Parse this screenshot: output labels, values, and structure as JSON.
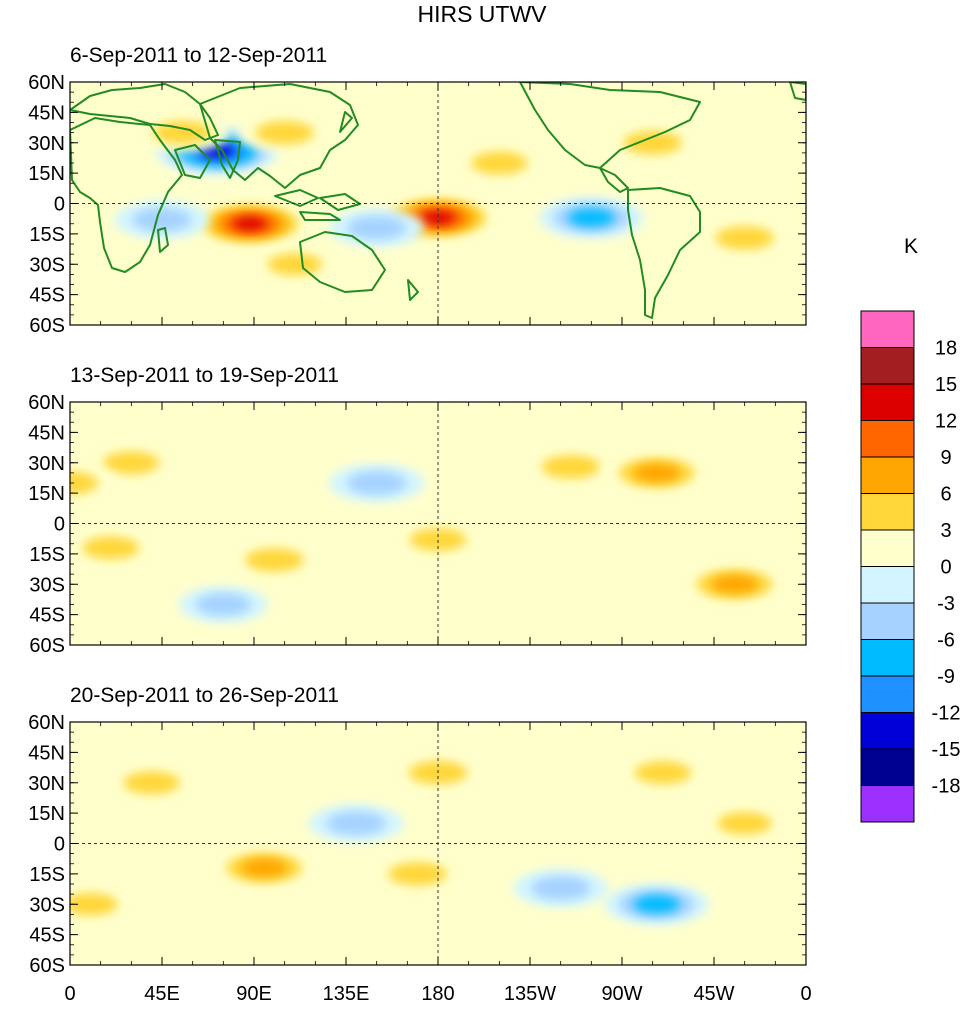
{
  "chart_data": {
    "type": "heatmap",
    "title": "HIRS UTWV",
    "unit_label": "K",
    "colorbar": {
      "levels": [
        "18",
        "15",
        "12",
        "9",
        "6",
        "3",
        "0",
        "-3",
        "-6",
        "-9",
        "-12",
        "-15",
        "-18"
      ],
      "colors": [
        "#ff66c0",
        "#a31e20",
        "#dd0000",
        "#ff6600",
        "#ffa600",
        "#ffd73a",
        "#ffffcc",
        "#d2f5ff",
        "#a6d2ff",
        "#00bbff",
        "#1e90ff",
        "#0000d8",
        "#000090",
        "#9b30ff"
      ]
    },
    "x_ticks": [
      "0",
      "45E",
      "90E",
      "135E",
      "180",
      "135W",
      "90W",
      "45W",
      "0"
    ],
    "y_ticks": [
      "60N",
      "45N",
      "30N",
      "15N",
      "0",
      "15S",
      "30S",
      "45S",
      "60S"
    ],
    "x_range_deg_east": [
      0,
      360
    ],
    "y_range_deg": [
      -60,
      60
    ],
    "reference_lines": {
      "equator_lat": 0,
      "dateline_lon": 180,
      "style": "dashed"
    },
    "coastline_color": "#228b22",
    "panels": [
      {
        "subtitle": "6-Sep-2011 to 12-Sep-2011",
        "features": [
          {
            "lon": 72,
            "lat": 26,
            "value": -15
          },
          {
            "lon": 88,
            "lat": -10,
            "value": 13
          },
          {
            "lon": 180,
            "lat": -7,
            "value": 13
          },
          {
            "lon": 255,
            "lat": -7,
            "value": -9
          },
          {
            "lon": 55,
            "lat": 35,
            "value": 6
          },
          {
            "lon": 105,
            "lat": 35,
            "value": 6
          },
          {
            "lon": 45,
            "lat": -8,
            "value": -6
          },
          {
            "lon": 150,
            "lat": -12,
            "value": -6
          },
          {
            "lon": 210,
            "lat": 20,
            "value": 5
          },
          {
            "lon": 285,
            "lat": 30,
            "value": 6
          },
          {
            "lon": 330,
            "lat": -17,
            "value": 6
          },
          {
            "lon": 110,
            "lat": -30,
            "value": 4
          }
        ]
      },
      {
        "subtitle": "13-Sep-2011 to 19-Sep-2011",
        "features": [
          {
            "lon": 245,
            "lat": 28,
            "value": 6
          },
          {
            "lon": 287,
            "lat": 25,
            "value": 9
          },
          {
            "lon": 325,
            "lat": -30,
            "value": 9
          },
          {
            "lon": 100,
            "lat": -18,
            "value": 6
          },
          {
            "lon": 20,
            "lat": -12,
            "value": 5
          },
          {
            "lon": 30,
            "lat": 30,
            "value": 5
          },
          {
            "lon": 180,
            "lat": -8,
            "value": 5
          },
          {
            "lon": 150,
            "lat": 20,
            "value": -6
          },
          {
            "lon": 75,
            "lat": -40,
            "value": -4
          },
          {
            "lon": 0,
            "lat": 20,
            "value": 5
          }
        ]
      },
      {
        "subtitle": "20-Sep-2011 to 26-Sep-2011",
        "features": [
          {
            "lon": 95,
            "lat": -12,
            "value": 9
          },
          {
            "lon": 170,
            "lat": -15,
            "value": 6
          },
          {
            "lon": 180,
            "lat": 35,
            "value": 6
          },
          {
            "lon": 40,
            "lat": 30,
            "value": 5
          },
          {
            "lon": 140,
            "lat": 10,
            "value": -6
          },
          {
            "lon": 240,
            "lat": -22,
            "value": -6
          },
          {
            "lon": 287,
            "lat": -30,
            "value": -9
          },
          {
            "lon": 290,
            "lat": 35,
            "value": 5
          },
          {
            "lon": 10,
            "lat": -30,
            "value": 4
          },
          {
            "lon": 330,
            "lat": 10,
            "value": 4
          }
        ]
      }
    ]
  }
}
